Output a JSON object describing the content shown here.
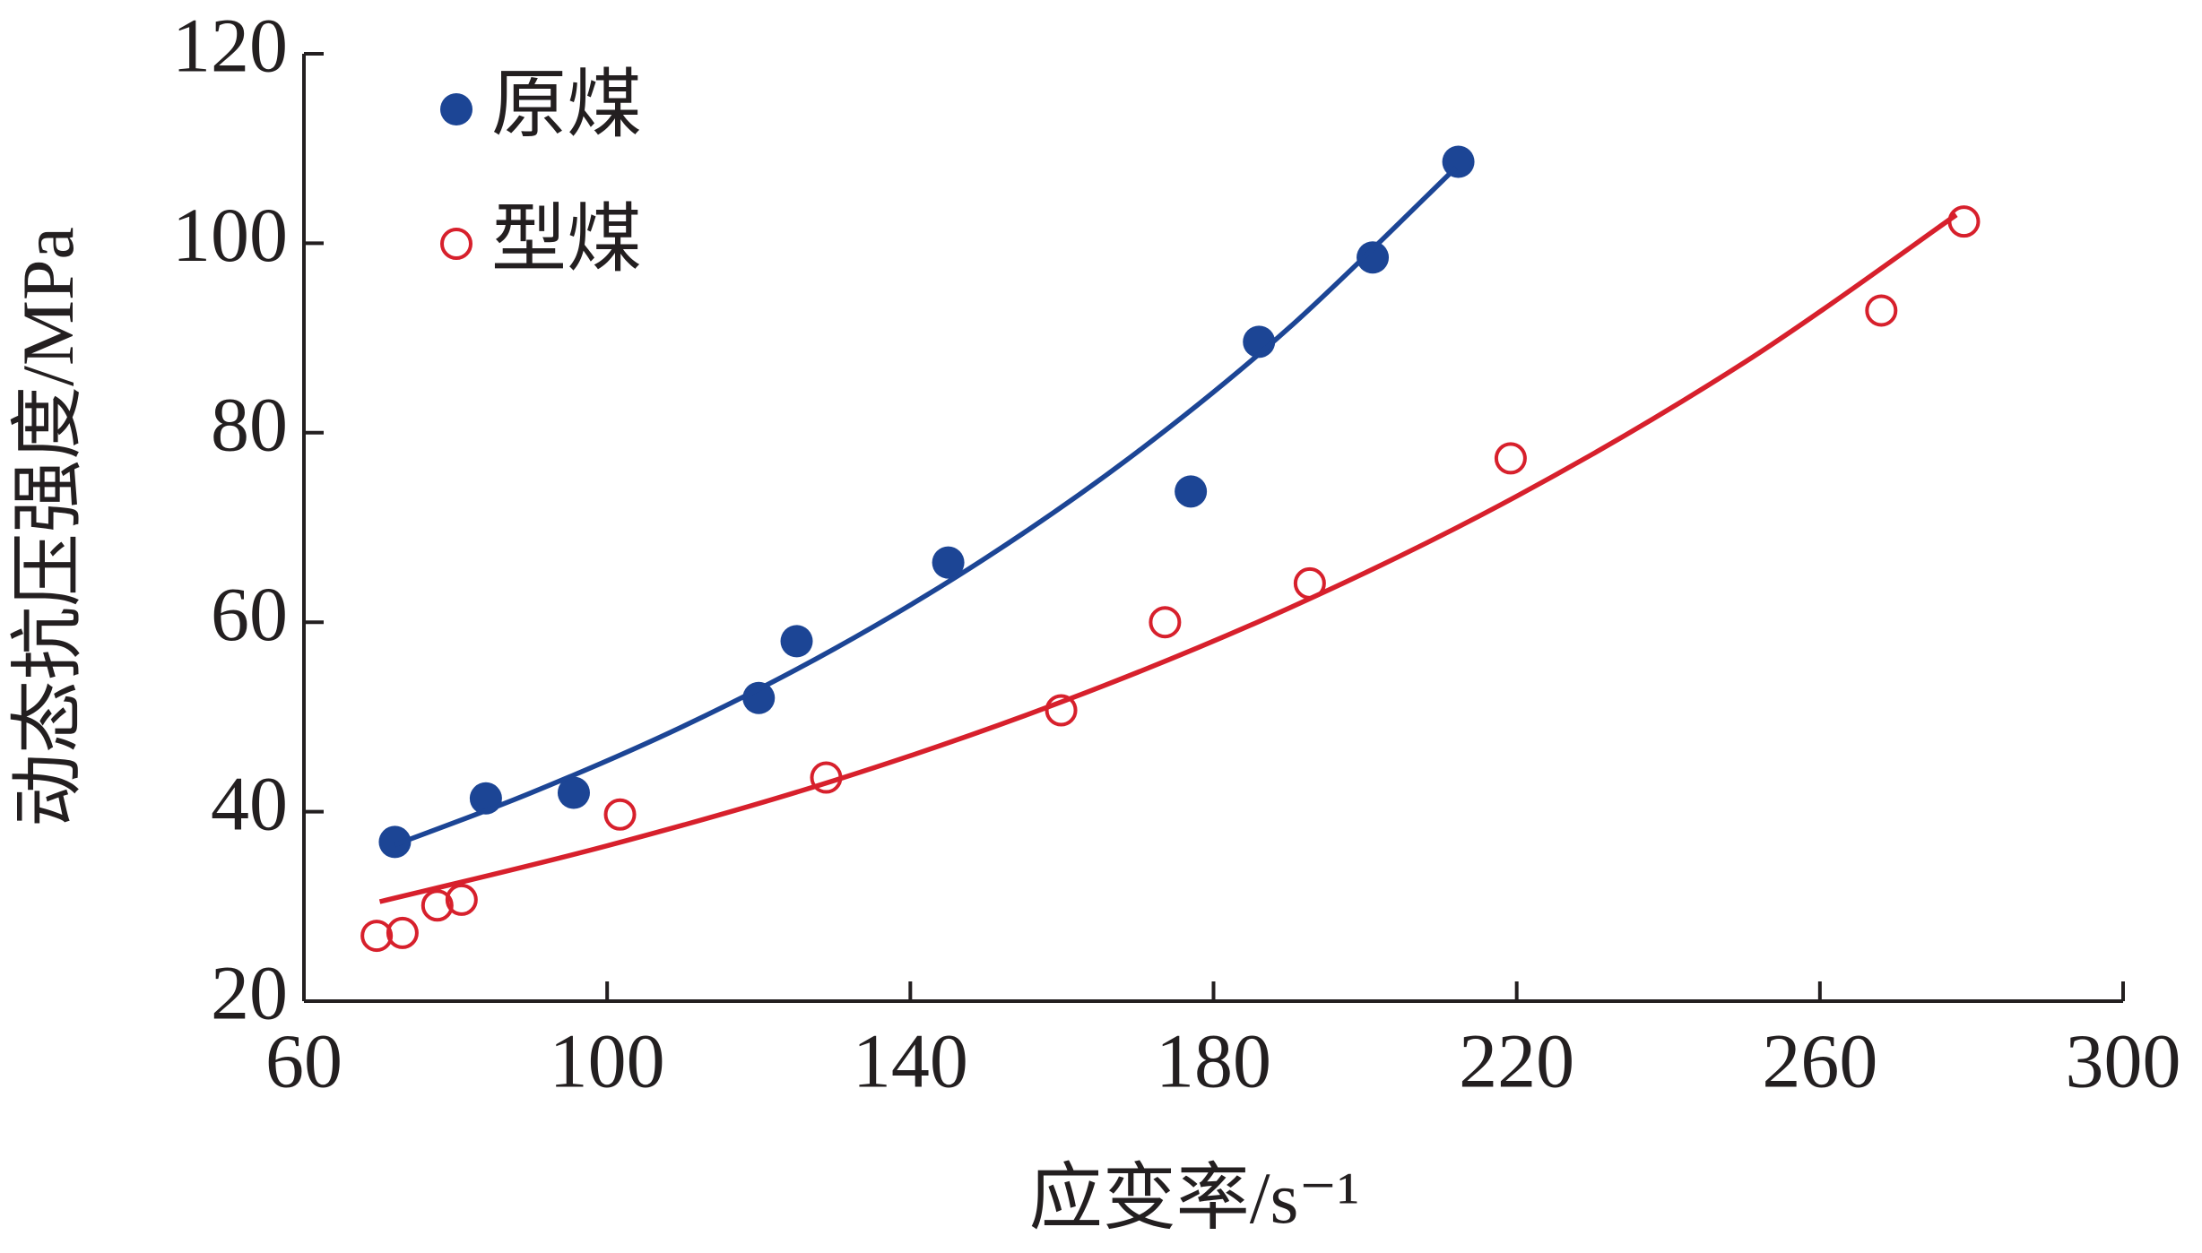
{
  "chart_data": {
    "type": "scatter",
    "xlabel": "应变率/s⁻¹",
    "ylabel": "动态抗压强度/MPa",
    "xlim": [
      60,
      300
    ],
    "xticks": [
      60,
      100,
      140,
      180,
      220,
      260,
      300
    ],
    "ylim": [
      20,
      120
    ],
    "yticks": [
      20,
      40,
      60,
      80,
      100,
      120
    ],
    "legend": "upper left",
    "series": [
      {
        "name": "原煤",
        "color": "#1c4595",
        "marker": "filled",
        "x": [
          72,
          84,
          95.6,
          120,
          125,
          145,
          177,
          186,
          201,
          212.3
        ],
        "values": [
          36.8,
          41.4,
          42,
          52,
          58,
          66.3,
          73.8,
          89.6,
          98.5,
          108.6
        ]
      },
      {
        "name": "型煤",
        "color": "#d7202c",
        "marker": "open",
        "x": [
          69.6,
          73,
          77.6,
          80.8,
          101.7,
          128.9,
          159.9,
          173.6,
          192.7,
          219.2,
          268.1,
          279
        ],
        "values": [
          26.9,
          27.2,
          30.1,
          30.7,
          39.7,
          43.6,
          50.7,
          60,
          64.1,
          77.3,
          92.9,
          102.3
        ]
      },
      {
        "style": "line",
        "color": "#1c4595",
        "x": [
          72,
          90,
          110,
          130,
          150,
          170,
          190,
          212
        ],
        "values": [
          36.5,
          42,
          49,
          57.2,
          66.8,
          78,
          91.1,
          108
        ]
      },
      {
        "style": "line",
        "color": "#d7202c",
        "x": [
          70,
          100,
          130,
          160,
          190,
          220,
          250,
          278
        ],
        "values": [
          30.5,
          36.4,
          43.3,
          51.6,
          61.5,
          73.3,
          87.4,
          103
        ]
      }
    ]
  }
}
